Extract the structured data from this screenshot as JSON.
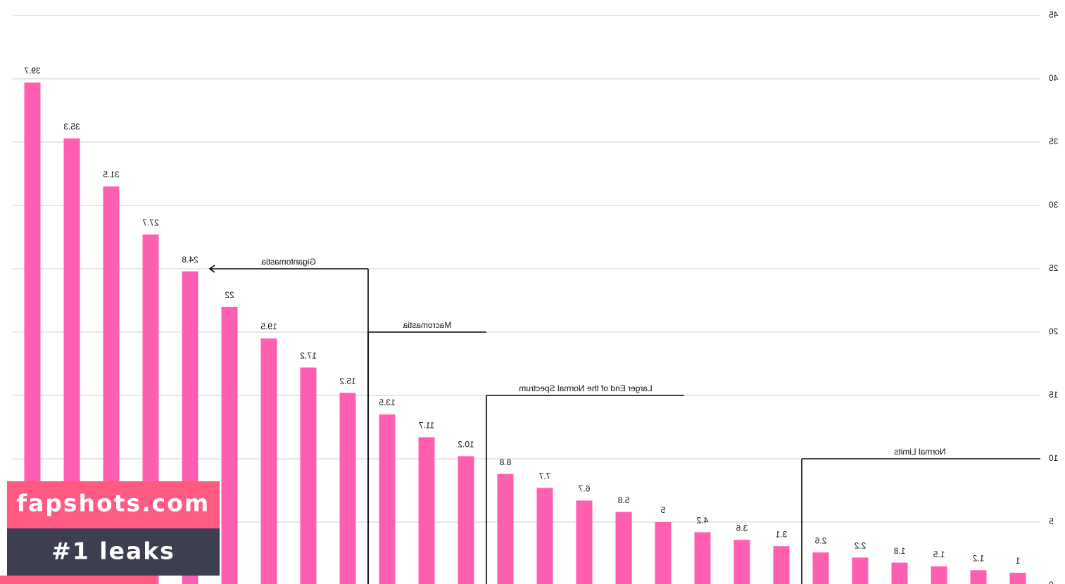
{
  "chart_data": {
    "type": "bar",
    "values": [
      39.7,
      35.3,
      31.5,
      27.7,
      24.8,
      22,
      19.5,
      17.2,
      15.2,
      13.5,
      11.7,
      10.2,
      8.8,
      7.7,
      6.7,
      5.8,
      5,
      4.2,
      3.6,
      3.1,
      2.6,
      2.2,
      1.8,
      1.5,
      1.2,
      1
    ],
    "color": "#ff5fb0",
    "ylim": [
      0,
      45
    ],
    "yticks": [
      0,
      5,
      10,
      15,
      20,
      25,
      30,
      35,
      40,
      45
    ],
    "grid": true,
    "annotations": [
      {
        "text": "Gigantomastia",
        "level": 25
      },
      {
        "text": "Macromastia",
        "level": 20
      },
      {
        "text": "Larger End of the Normal Spectrum",
        "level": 15
      },
      {
        "text": "Normal Limits",
        "level": 10
      }
    ]
  },
  "watermark": {
    "site": "fapshots.com",
    "tagline": "#1 leaks"
  }
}
